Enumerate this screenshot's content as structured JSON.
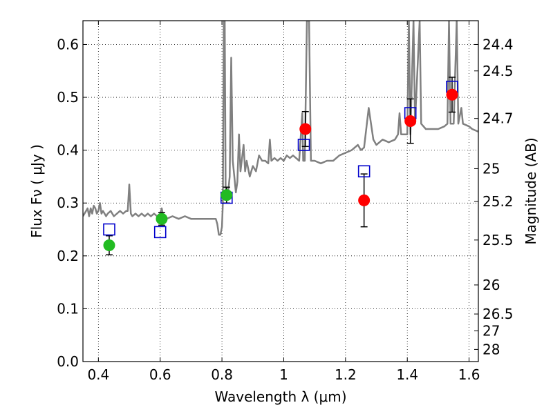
{
  "chart_data": {
    "type": "scatter",
    "xlabel": "Wavelength  λ (μm)",
    "ylabel": "Flux  Fν ( μJy )",
    "ylabel_right": "Magnitude (AB)",
    "xlim": [
      0.35,
      1.63
    ],
    "ylim": [
      0.0,
      0.645
    ],
    "grid": true,
    "x_ticks": [
      {
        "value": 0.4,
        "label": "0.4"
      },
      {
        "value": 0.6,
        "label": "0.6"
      },
      {
        "value": 0.8,
        "label": "0.8"
      },
      {
        "value": 1.0,
        "label": "1"
      },
      {
        "value": 1.2,
        "label": "1.2"
      },
      {
        "value": 1.4,
        "label": "1.4"
      },
      {
        "value": 1.6,
        "label": "1.6"
      }
    ],
    "y_ticks": [
      {
        "value": 0.0,
        "label": "0.0"
      },
      {
        "value": 0.1,
        "label": "0.1"
      },
      {
        "value": 0.2,
        "label": "0.2"
      },
      {
        "value": 0.3,
        "label": "0.3"
      },
      {
        "value": 0.4,
        "label": "0.4"
      },
      {
        "value": 0.5,
        "label": "0.5"
      },
      {
        "value": 0.6,
        "label": "0.6"
      }
    ],
    "right_ticks": [
      {
        "flux": 0.6,
        "label": "24.4"
      },
      {
        "flux": 0.55,
        "label": "24.5"
      },
      {
        "flux": 0.46,
        "label": "24.7"
      },
      {
        "flux": 0.365,
        "label": "25"
      },
      {
        "flux": 0.303,
        "label": "25.2"
      },
      {
        "flux": 0.23,
        "label": "25.5"
      },
      {
        "flux": 0.145,
        "label": "26"
      },
      {
        "flux": 0.09,
        "label": "26.5"
      },
      {
        "flux": 0.058,
        "label": "27"
      },
      {
        "flux": 0.023,
        "label": "28"
      }
    ],
    "series": [
      {
        "kind": "line",
        "color": "#808080",
        "points": [
          [
            0.35,
            0.275
          ],
          [
            0.36,
            0.285
          ],
          [
            0.365,
            0.29
          ],
          [
            0.37,
            0.275
          ],
          [
            0.375,
            0.29
          ],
          [
            0.38,
            0.28
          ],
          [
            0.385,
            0.295
          ],
          [
            0.39,
            0.29
          ],
          [
            0.395,
            0.28
          ],
          [
            0.4,
            0.285
          ],
          [
            0.405,
            0.3
          ],
          [
            0.41,
            0.28
          ],
          [
            0.415,
            0.285
          ],
          [
            0.42,
            0.28
          ],
          [
            0.425,
            0.275
          ],
          [
            0.43,
            0.28
          ],
          [
            0.44,
            0.285
          ],
          [
            0.45,
            0.275
          ],
          [
            0.46,
            0.28
          ],
          [
            0.47,
            0.285
          ],
          [
            0.48,
            0.28
          ],
          [
            0.49,
            0.285
          ],
          [
            0.495,
            0.285
          ],
          [
            0.5,
            0.335
          ],
          [
            0.505,
            0.28
          ],
          [
            0.51,
            0.275
          ],
          [
            0.52,
            0.28
          ],
          [
            0.53,
            0.275
          ],
          [
            0.54,
            0.28
          ],
          [
            0.55,
            0.275
          ],
          [
            0.56,
            0.28
          ],
          [
            0.57,
            0.275
          ],
          [
            0.58,
            0.28
          ],
          [
            0.59,
            0.275
          ],
          [
            0.6,
            0.28
          ],
          [
            0.605,
            0.29
          ],
          [
            0.61,
            0.275
          ],
          [
            0.62,
            0.27
          ],
          [
            0.64,
            0.275
          ],
          [
            0.66,
            0.27
          ],
          [
            0.68,
            0.275
          ],
          [
            0.7,
            0.27
          ],
          [
            0.72,
            0.27
          ],
          [
            0.74,
            0.27
          ],
          [
            0.76,
            0.27
          ],
          [
            0.78,
            0.27
          ],
          [
            0.785,
            0.26
          ],
          [
            0.79,
            0.24
          ],
          [
            0.795,
            0.24
          ],
          [
            0.8,
            0.255
          ],
          [
            0.803,
            0.3
          ],
          [
            0.806,
            0.645
          ],
          [
            0.809,
            0.645
          ],
          [
            0.812,
            0.31
          ],
          [
            0.816,
            0.31
          ],
          [
            0.82,
            0.32
          ],
          [
            0.825,
            0.35
          ],
          [
            0.83,
            0.575
          ],
          [
            0.835,
            0.38
          ],
          [
            0.84,
            0.35
          ],
          [
            0.845,
            0.32
          ],
          [
            0.85,
            0.34
          ],
          [
            0.855,
            0.43
          ],
          [
            0.86,
            0.36
          ],
          [
            0.87,
            0.41
          ],
          [
            0.875,
            0.36
          ],
          [
            0.88,
            0.38
          ],
          [
            0.89,
            0.35
          ],
          [
            0.9,
            0.37
          ],
          [
            0.91,
            0.36
          ],
          [
            0.92,
            0.39
          ],
          [
            0.93,
            0.38
          ],
          [
            0.94,
            0.38
          ],
          [
            0.95,
            0.375
          ],
          [
            0.955,
            0.42
          ],
          [
            0.96,
            0.38
          ],
          [
            0.97,
            0.385
          ],
          [
            0.98,
            0.38
          ],
          [
            0.99,
            0.385
          ],
          [
            1.0,
            0.38
          ],
          [
            1.01,
            0.39
          ],
          [
            1.02,
            0.385
          ],
          [
            1.03,
            0.39
          ],
          [
            1.04,
            0.385
          ],
          [
            1.05,
            0.38
          ],
          [
            1.06,
            0.47
          ],
          [
            1.063,
            0.38
          ],
          [
            1.068,
            0.38
          ],
          [
            1.075,
            0.645
          ],
          [
            1.082,
            0.645
          ],
          [
            1.088,
            0.38
          ],
          [
            1.1,
            0.38
          ],
          [
            1.12,
            0.375
          ],
          [
            1.14,
            0.38
          ],
          [
            1.16,
            0.38
          ],
          [
            1.18,
            0.39
          ],
          [
            1.2,
            0.395
          ],
          [
            1.22,
            0.4
          ],
          [
            1.24,
            0.41
          ],
          [
            1.25,
            0.4
          ],
          [
            1.26,
            0.405
          ],
          [
            1.275,
            0.48
          ],
          [
            1.29,
            0.42
          ],
          [
            1.3,
            0.41
          ],
          [
            1.32,
            0.42
          ],
          [
            1.34,
            0.415
          ],
          [
            1.36,
            0.42
          ],
          [
            1.37,
            0.43
          ],
          [
            1.375,
            0.47
          ],
          [
            1.38,
            0.43
          ],
          [
            1.39,
            0.43
          ],
          [
            1.4,
            0.43
          ],
          [
            1.405,
            0.645
          ],
          [
            1.41,
            0.43
          ],
          [
            1.42,
            0.645
          ],
          [
            1.425,
            0.45
          ],
          [
            1.44,
            0.645
          ],
          [
            1.445,
            0.45
          ],
          [
            1.46,
            0.44
          ],
          [
            1.48,
            0.44
          ],
          [
            1.5,
            0.44
          ],
          [
            1.52,
            0.445
          ],
          [
            1.53,
            0.45
          ],
          [
            1.535,
            0.645
          ],
          [
            1.54,
            0.45
          ],
          [
            1.55,
            0.45
          ],
          [
            1.56,
            0.645
          ],
          [
            1.565,
            0.45
          ],
          [
            1.575,
            0.48
          ],
          [
            1.58,
            0.45
          ],
          [
            1.6,
            0.445
          ],
          [
            1.61,
            0.44
          ],
          [
            1.63,
            0.435
          ]
        ]
      },
      {
        "kind": "square",
        "color": "#0000cc",
        "points": [
          [
            0.435,
            0.25
          ],
          [
            0.6,
            0.245
          ],
          [
            0.815,
            0.31
          ],
          [
            1.065,
            0.41
          ],
          [
            1.26,
            0.36
          ],
          [
            1.41,
            0.47
          ],
          [
            1.545,
            0.52
          ]
        ]
      },
      {
        "kind": "circle",
        "color": "#22bb22",
        "points": [
          {
            "x": 0.435,
            "y": 0.22,
            "err": 0.018
          },
          {
            "x": 0.605,
            "y": 0.27,
            "err": 0.012
          },
          {
            "x": 0.815,
            "y": 0.315,
            "err": 0.015
          }
        ]
      },
      {
        "kind": "circle",
        "color": "#ff0000",
        "points": [
          {
            "x": 1.07,
            "y": 0.44,
            "err": 0.033
          },
          {
            "x": 1.26,
            "y": 0.305,
            "err": 0.05
          },
          {
            "x": 1.41,
            "y": 0.455,
            "err": 0.042
          },
          {
            "x": 1.545,
            "y": 0.505,
            "err": 0.033
          }
        ]
      }
    ]
  }
}
